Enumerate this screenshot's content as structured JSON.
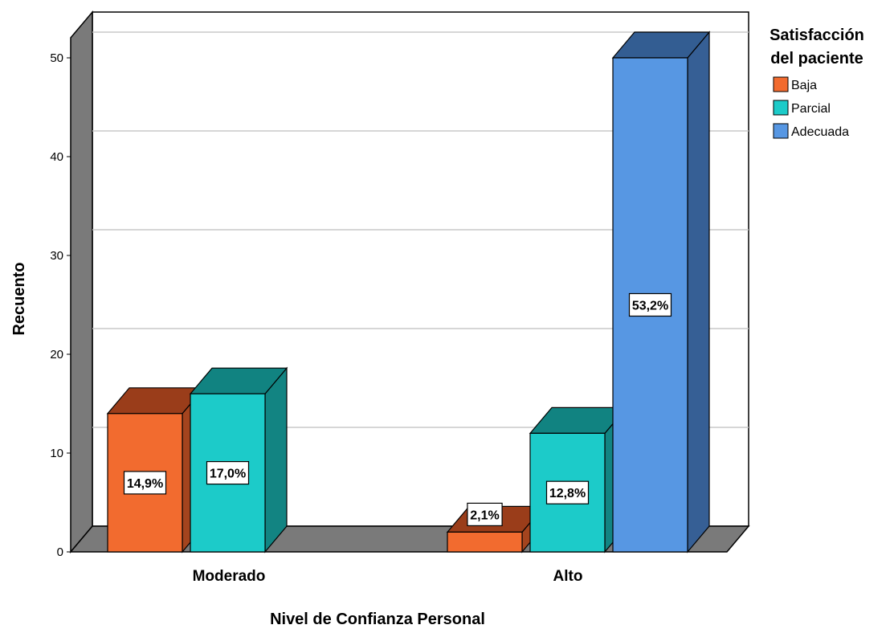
{
  "chart_data": {
    "type": "bar",
    "categories": [
      "Moderado",
      "Alto"
    ],
    "series": [
      {
        "name": "Baja",
        "values": [
          14,
          2
        ],
        "labels": [
          "14,9%",
          "2,1%"
        ],
        "color": "#f26b2f",
        "top_color": "#9a3d1a",
        "side_color": "#a4441e"
      },
      {
        "name": "Parcial",
        "values": [
          16,
          12
        ],
        "labels": [
          "17,0%",
          "12,8%"
        ],
        "color": "#1ccbc9",
        "top_color": "#118381",
        "side_color": "#128482"
      },
      {
        "name": "Adecuada",
        "values": [
          0,
          50
        ],
        "labels": [
          "",
          "53,2%"
        ],
        "color": "#5797e3",
        "top_color": "#335d92",
        "side_color": "#365f95"
      }
    ],
    "xlabel": "Nivel de Confianza Personal",
    "ylabel": "Recuento",
    "ylim": [
      0,
      50
    ],
    "yticks": [
      0,
      10,
      20,
      30,
      40,
      50
    ],
    "grid": true,
    "legend": {
      "title": "Satisfacción del paciente",
      "title_lines": [
        "Satisfacción",
        "del paciente"
      ],
      "placement": "right"
    }
  }
}
